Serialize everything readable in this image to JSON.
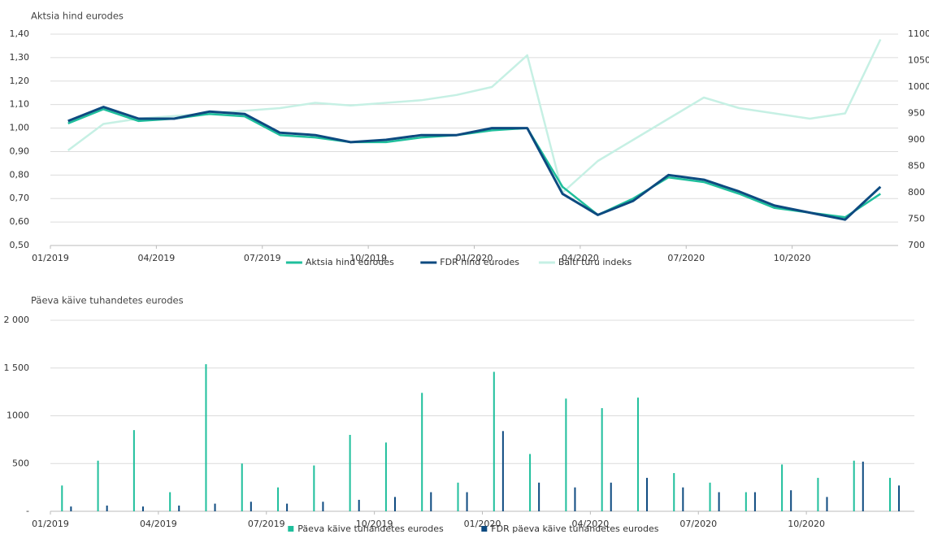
{
  "chart_data": [
    {
      "type": "line",
      "title": "Aktsia hind eurodes",
      "x": [
        "01/2019",
        "02/2019",
        "03/2019",
        "04/2019",
        "05/2019",
        "06/2019",
        "07/2019",
        "08/2019",
        "09/2019",
        "10/2019",
        "11/2019",
        "12/2019",
        "01/2020",
        "02/2020",
        "03/2020",
        "04/2020",
        "05/2020",
        "06/2020",
        "07/2020",
        "08/2020",
        "09/2020",
        "10/2020",
        "11/2020",
        "12/2020"
      ],
      "xticks": [
        "01/2019",
        "04/2019",
        "07/2019",
        "10/2019",
        "01/2020",
        "04/2020",
        "07/2020",
        "10/2020"
      ],
      "series": [
        {
          "name": "Aktsia hind eurodes",
          "color": "#1fbf9c",
          "values": [
            1.02,
            1.08,
            1.03,
            1.04,
            1.06,
            1.05,
            0.97,
            0.96,
            0.94,
            0.94,
            0.96,
            0.97,
            0.99,
            1.0,
            0.75,
            0.63,
            0.7,
            0.79,
            0.77,
            0.72,
            0.66,
            0.64,
            0.62,
            0.72
          ]
        },
        {
          "name": "FDR hind eurodes",
          "color": "#0d4a80",
          "values": [
            1.03,
            1.09,
            1.04,
            1.04,
            1.07,
            1.06,
            0.98,
            0.97,
            0.94,
            0.95,
            0.97,
            0.97,
            1.0,
            1.0,
            0.72,
            0.63,
            0.69,
            0.8,
            0.78,
            0.73,
            0.67,
            0.64,
            0.61,
            0.75
          ]
        },
        {
          "name": "Balti turu indeks",
          "color": "#c6f0e4",
          "axis": "y2",
          "values": [
            880,
            930,
            940,
            945,
            950,
            955,
            960,
            970,
            965,
            970,
            975,
            985,
            1000,
            1060,
            800,
            860,
            900,
            940,
            980,
            960,
            950,
            940,
            950,
            1090
          ]
        }
      ],
      "ylim": [
        0.5,
        1.4
      ],
      "yticks": [
        {
          "value": 0.5,
          "label": "0,50"
        },
        {
          "value": 0.6,
          "label": "0,60"
        },
        {
          "value": 0.7,
          "label": "0,70"
        },
        {
          "value": 0.8,
          "label": "0,80"
        },
        {
          "value": 0.9,
          "label": "0,90"
        },
        {
          "value": 1.0,
          "label": "1,00"
        },
        {
          "value": 1.1,
          "label": "1,10"
        },
        {
          "value": 1.2,
          "label": "1,20"
        },
        {
          "value": 1.3,
          "label": "1,30"
        },
        {
          "value": 1.4,
          "label": "1,40"
        }
      ],
      "y2lim": [
        700,
        1100
      ],
      "y2ticks": [
        700,
        750,
        800,
        850,
        900,
        950,
        1000,
        1050,
        1100
      ],
      "grid": true,
      "legend": "bottom"
    },
    {
      "type": "bar",
      "title": "Päeva käive tuhandetes eurodes",
      "x": [
        "01/2019",
        "02/2019",
        "03/2019",
        "04/2019",
        "05/2019",
        "06/2019",
        "07/2019",
        "08/2019",
        "09/2019",
        "10/2019",
        "11/2019",
        "12/2019",
        "01/2020",
        "02/2020",
        "03/2020",
        "04/2020",
        "05/2020",
        "06/2020",
        "07/2020",
        "08/2020",
        "09/2020",
        "10/2020",
        "11/2020",
        "12/2020"
      ],
      "xticks": [
        "01/2019",
        "04/2019",
        "07/2019",
        "10/2019",
        "01/2020",
        "04/2020",
        "07/2020",
        "10/2020"
      ],
      "series": [
        {
          "name": "Päeva käive tuhandetes eurodes",
          "color": "#1fbf9c",
          "values": [
            270,
            530,
            850,
            200,
            1540,
            500,
            250,
            480,
            800,
            720,
            1240,
            300,
            1460,
            600,
            1180,
            1080,
            1190,
            400,
            300,
            200,
            490,
            350,
            530,
            350
          ]
        },
        {
          "name": "FDR päeva käive tuhandetes eurodes",
          "color": "#0d4a80",
          "values": [
            50,
            60,
            50,
            60,
            80,
            100,
            80,
            100,
            120,
            150,
            200,
            200,
            840,
            300,
            250,
            300,
            350,
            250,
            200,
            200,
            220,
            150,
            520,
            270
          ]
        }
      ],
      "ylim": [
        0,
        2000
      ],
      "yticks": [
        {
          "value": 0,
          "label": "-"
        },
        500,
        1000,
        {
          "value": 1500,
          "label": "1 500"
        },
        {
          "value": 2000,
          "label": "2 000"
        }
      ],
      "grid": true,
      "legend": "bottom"
    }
  ]
}
